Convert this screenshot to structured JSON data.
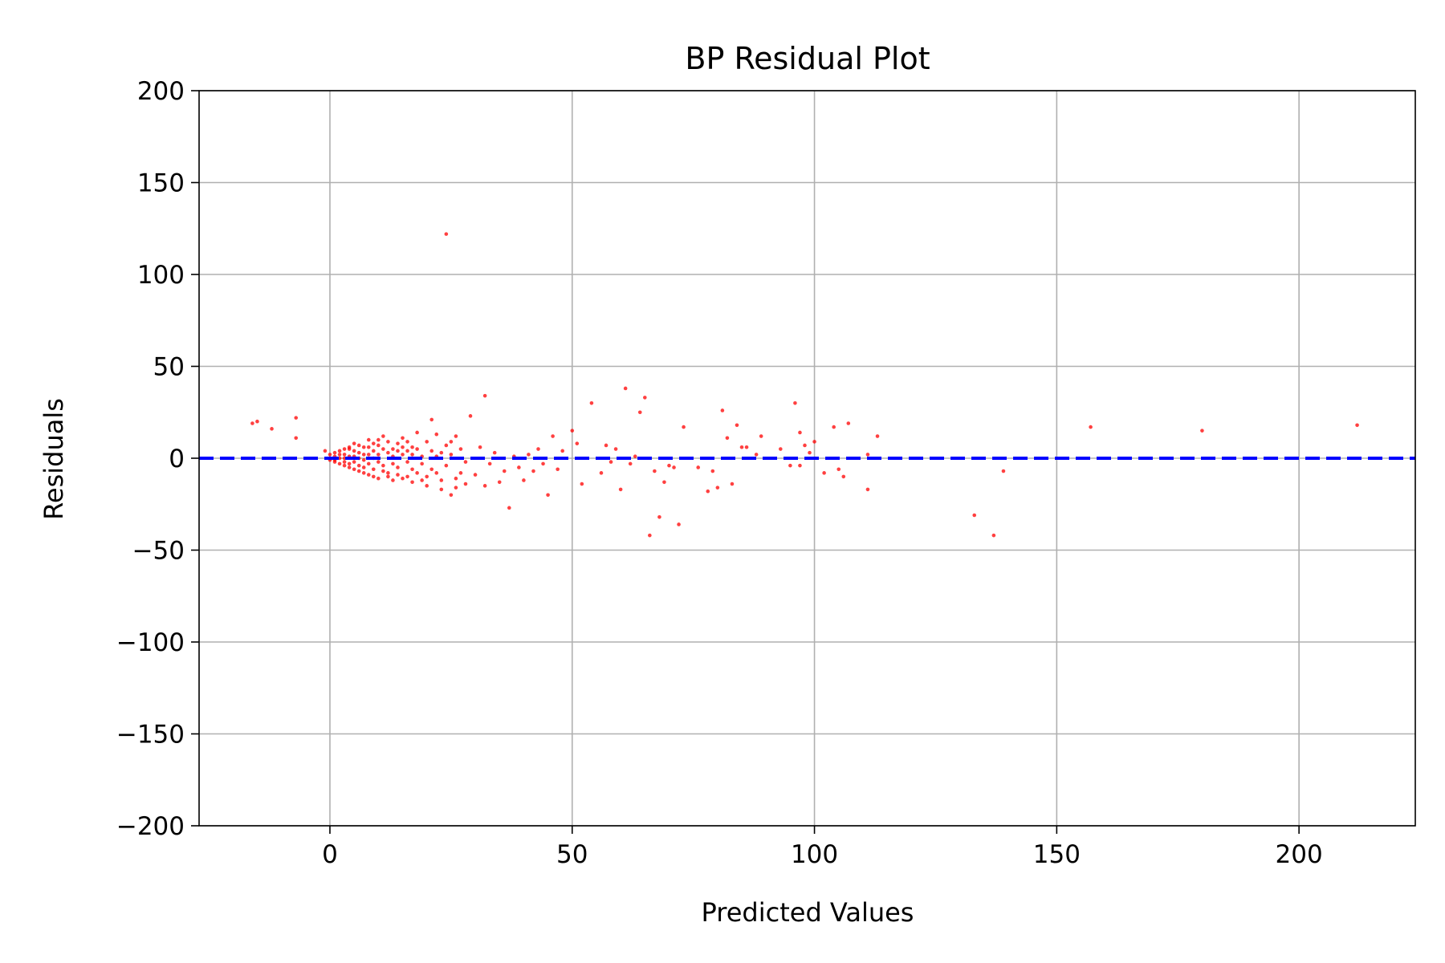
{
  "chart_data": {
    "type": "scatter",
    "title": "BP Residual Plot",
    "xlabel": "Predicted Values",
    "ylabel": "Residuals",
    "xlim": [
      -27,
      224
    ],
    "ylim": [
      -200,
      200
    ],
    "xticks": [
      0,
      50,
      100,
      150,
      200
    ],
    "yticks": [
      -200,
      -150,
      -100,
      -50,
      0,
      50,
      100,
      150,
      200
    ],
    "xtick_labels": [
      "0",
      "50",
      "100",
      "150",
      "200"
    ],
    "ytick_labels": [
      "−200",
      "−150",
      "−100",
      "−50",
      "0",
      "50",
      "100",
      "150",
      "200"
    ],
    "grid": true,
    "point_color": "#ff0000",
    "reference_line": {
      "y": 0,
      "style": "dashed",
      "color": "#0000ff"
    },
    "series": [
      {
        "points": [
          [
            -16,
            19
          ],
          [
            -15,
            20
          ],
          [
            -12,
            16
          ],
          [
            -7,
            22
          ],
          [
            -7,
            11
          ],
          [
            -1,
            4
          ],
          [
            0,
            2
          ],
          [
            1,
            3
          ],
          [
            2,
            0
          ],
          [
            3,
            2
          ],
          [
            3,
            -2
          ],
          [
            4,
            5
          ],
          [
            4,
            -3
          ],
          [
            5,
            1
          ],
          [
            5,
            8
          ],
          [
            6,
            -4
          ],
          [
            6,
            3
          ],
          [
            7,
            6
          ],
          [
            7,
            -5
          ],
          [
            8,
            2
          ],
          [
            8,
            10
          ],
          [
            9,
            -6
          ],
          [
            9,
            4
          ],
          [
            10,
            7
          ],
          [
            10,
            -2
          ],
          [
            11,
            -7
          ],
          [
            11,
            12
          ],
          [
            12,
            3
          ],
          [
            12,
            -8
          ],
          [
            13,
            5
          ],
          [
            13,
            -3
          ],
          [
            14,
            8
          ],
          [
            14,
            -9
          ],
          [
            15,
            2
          ],
          [
            15,
            11
          ],
          [
            16,
            -10
          ],
          [
            16,
            4
          ],
          [
            17,
            6
          ],
          [
            17,
            -6
          ],
          [
            18,
            14
          ],
          [
            19,
            -12
          ],
          [
            19,
            1
          ],
          [
            20,
            9
          ],
          [
            20,
            -15
          ],
          [
            21,
            4
          ],
          [
            21,
            21
          ],
          [
            22,
            -8
          ],
          [
            22,
            13
          ],
          [
            23,
            -17
          ],
          [
            23,
            3
          ],
          [
            24,
            7
          ],
          [
            24,
            122
          ],
          [
            25,
            -20
          ],
          [
            25,
            2
          ],
          [
            26,
            12
          ],
          [
            26,
            -11
          ],
          [
            27,
            5
          ],
          [
            28,
            -14
          ],
          [
            28,
            -2
          ],
          [
            29,
            23
          ],
          [
            30,
            -9
          ],
          [
            31,
            6
          ],
          [
            32,
            34
          ],
          [
            32,
            -15
          ],
          [
            33,
            -3
          ],
          [
            34,
            3
          ],
          [
            35,
            -13
          ],
          [
            36,
            -7
          ],
          [
            37,
            -27
          ],
          [
            38,
            1
          ],
          [
            39,
            -5
          ],
          [
            40,
            -12
          ],
          [
            41,
            2
          ],
          [
            42,
            -7
          ],
          [
            43,
            5
          ],
          [
            44,
            -3
          ],
          [
            45,
            -20
          ],
          [
            46,
            12
          ],
          [
            47,
            -6
          ],
          [
            48,
            4
          ],
          [
            50,
            15
          ],
          [
            51,
            8
          ],
          [
            52,
            -14
          ],
          [
            54,
            30
          ],
          [
            56,
            -8
          ],
          [
            57,
            7
          ],
          [
            58,
            -2
          ],
          [
            59,
            5
          ],
          [
            60,
            -17
          ],
          [
            61,
            38
          ],
          [
            62,
            -3
          ],
          [
            63,
            1
          ],
          [
            64,
            25
          ],
          [
            65,
            33
          ],
          [
            66,
            -42
          ],
          [
            67,
            -7
          ],
          [
            68,
            -32
          ],
          [
            69,
            -13
          ],
          [
            70,
            -4
          ],
          [
            71,
            -5
          ],
          [
            72,
            -36
          ],
          [
            73,
            17
          ],
          [
            76,
            -5
          ],
          [
            78,
            -18
          ],
          [
            79,
            -7
          ],
          [
            80,
            -16
          ],
          [
            81,
            26
          ],
          [
            82,
            11
          ],
          [
            83,
            -14
          ],
          [
            84,
            18
          ],
          [
            85,
            6
          ],
          [
            86,
            6
          ],
          [
            88,
            2
          ],
          [
            89,
            12
          ],
          [
            93,
            5
          ],
          [
            95,
            -4
          ],
          [
            96,
            30
          ],
          [
            97,
            14
          ],
          [
            97,
            -4
          ],
          [
            98,
            7
          ],
          [
            99,
            3
          ],
          [
            100,
            9
          ],
          [
            102,
            -8
          ],
          [
            104,
            17
          ],
          [
            105,
            -6
          ],
          [
            106,
            -10
          ],
          [
            107,
            19
          ],
          [
            111,
            2
          ],
          [
            111,
            -17
          ],
          [
            113,
            12
          ],
          [
            133,
            -31
          ],
          [
            137,
            -42
          ],
          [
            139,
            -7
          ],
          [
            157,
            17
          ],
          [
            180,
            15
          ],
          [
            212,
            18
          ],
          [
            0,
            0
          ],
          [
            0,
            -1
          ],
          [
            1,
            -1
          ],
          [
            1,
            1
          ],
          [
            1,
            -2
          ],
          [
            2,
            -3
          ],
          [
            2,
            2
          ],
          [
            2,
            4
          ],
          [
            3,
            -4
          ],
          [
            3,
            5
          ],
          [
            3,
            0
          ],
          [
            4,
            -5
          ],
          [
            4,
            1
          ],
          [
            4,
            6
          ],
          [
            5,
            -6
          ],
          [
            5,
            -2
          ],
          [
            5,
            4
          ],
          [
            6,
            -7
          ],
          [
            6,
            0
          ],
          [
            6,
            7
          ],
          [
            7,
            -8
          ],
          [
            7,
            -1
          ],
          [
            7,
            2
          ],
          [
            8,
            -9
          ],
          [
            8,
            -3
          ],
          [
            8,
            6
          ],
          [
            9,
            -10
          ],
          [
            9,
            0
          ],
          [
            9,
            8
          ],
          [
            10,
            -11
          ],
          [
            10,
            2
          ],
          [
            10,
            10
          ],
          [
            11,
            -4
          ],
          [
            11,
            5
          ],
          [
            12,
            -10
          ],
          [
            12,
            9
          ],
          [
            13,
            -12
          ],
          [
            13,
            1
          ],
          [
            14,
            -5
          ],
          [
            14,
            4
          ],
          [
            15,
            -11
          ],
          [
            15,
            6
          ],
          [
            16,
            -2
          ],
          [
            16,
            9
          ],
          [
            17,
            -13
          ],
          [
            17,
            2
          ],
          [
            18,
            -8
          ],
          [
            18,
            5
          ],
          [
            19,
            -3
          ],
          [
            20,
            -10
          ],
          [
            21,
            -6
          ],
          [
            22,
            1
          ],
          [
            23,
            -12
          ],
          [
            24,
            -4
          ],
          [
            25,
            9
          ],
          [
            26,
            -16
          ],
          [
            27,
            -8
          ]
        ]
      }
    ]
  }
}
